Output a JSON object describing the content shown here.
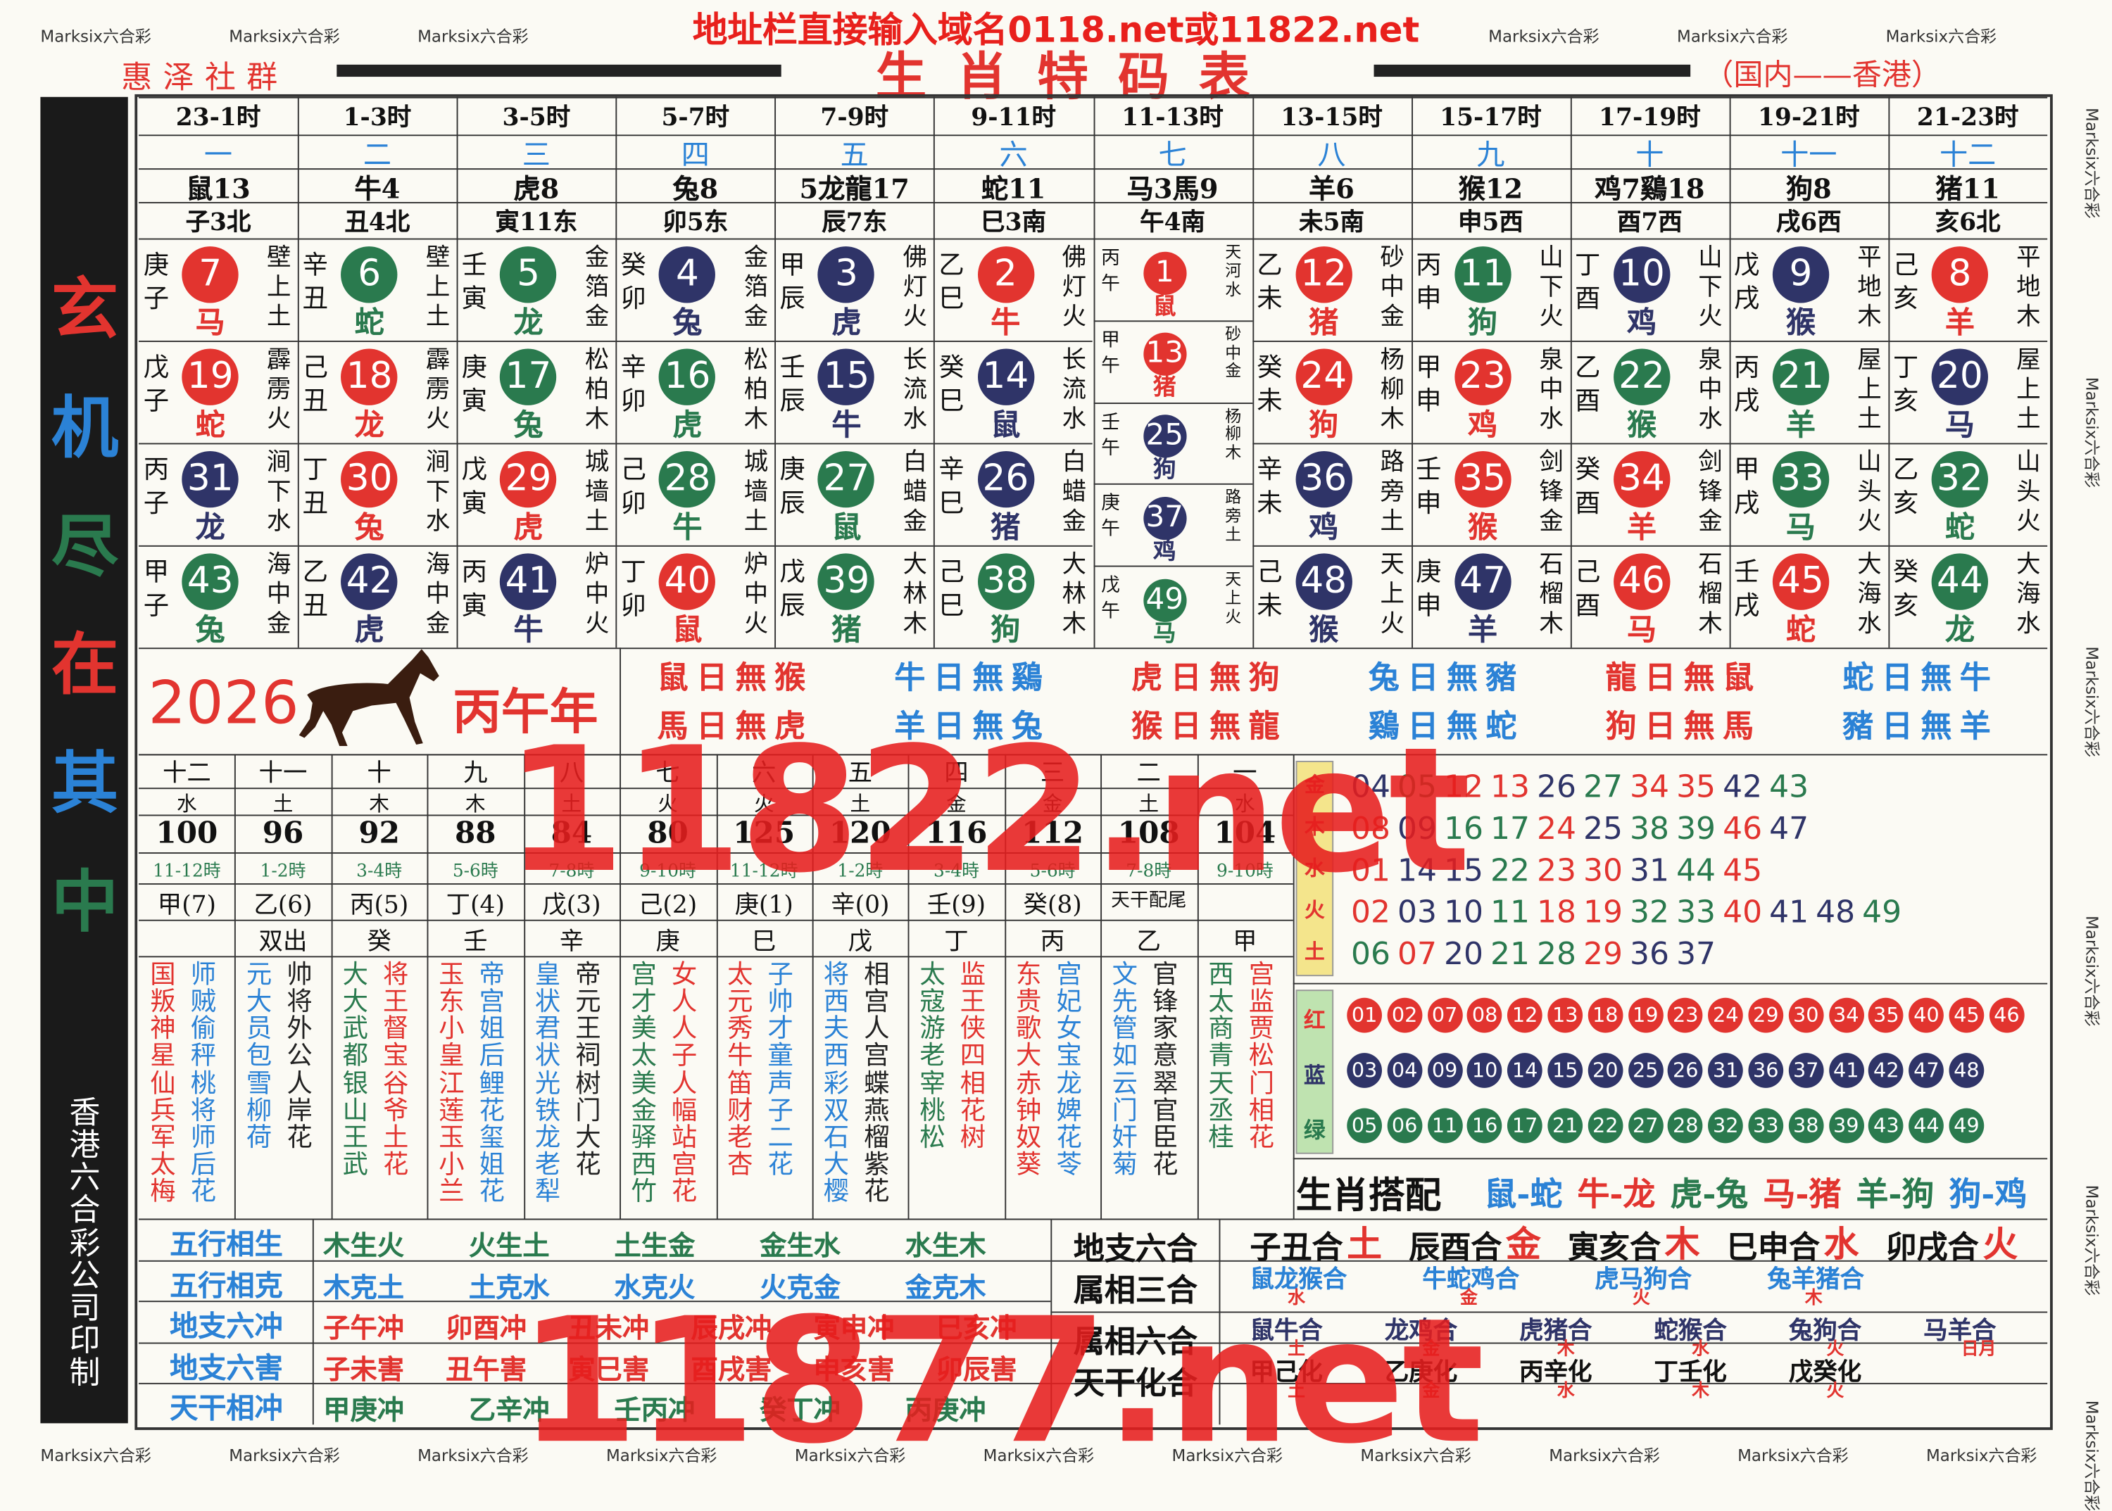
{
  "header": {
    "notice": "地址栏直接输入域名0118.net或11822.net",
    "group": "惠泽社群",
    "title": "生肖特码表",
    "region": "（国内——香港）"
  },
  "watermark": "Marksix六合彩",
  "side": {
    "slogan": "玄机尽在其中",
    "printer": "香港六合彩公司印制"
  },
  "columns": [
    {
      "hours": "23-1时",
      "number": "一",
      "zodiac": "鼠13",
      "branch": "子3北",
      "cells": [
        {
          "ganzhi": "庚子",
          "num": 7,
          "animal": "马",
          "nayin": "壁上土"
        },
        {
          "ganzhi": "戊子",
          "num": 19,
          "animal": "蛇",
          "nayin": "霹雳火"
        },
        {
          "ganzhi": "丙子",
          "num": 31,
          "animal": "龙",
          "nayin": "涧下水"
        },
        {
          "ganzhi": "甲子",
          "num": 43,
          "animal": "兔",
          "nayin": "海中金"
        }
      ]
    },
    {
      "hours": "1-3时",
      "number": "二",
      "zodiac": "牛4",
      "branch": "丑4北",
      "cells": [
        {
          "ganzhi": "辛丑",
          "num": 6,
          "animal": "蛇",
          "nayin": "壁上土"
        },
        {
          "ganzhi": "己丑",
          "num": 18,
          "animal": "龙",
          "nayin": "霹雳火"
        },
        {
          "ganzhi": "丁丑",
          "num": 30,
          "animal": "兔",
          "nayin": "涧下水"
        },
        {
          "ganzhi": "乙丑",
          "num": 42,
          "animal": "虎",
          "nayin": "海中金"
        }
      ]
    },
    {
      "hours": "3-5时",
      "number": "三",
      "zodiac": "虎8",
      "branch": "寅11东",
      "cells": [
        {
          "ganzhi": "壬寅",
          "num": 5,
          "animal": "龙",
          "nayin": "金箔金"
        },
        {
          "ganzhi": "庚寅",
          "num": 17,
          "animal": "兔",
          "nayin": "松柏木"
        },
        {
          "ganzhi": "戊寅",
          "num": 29,
          "animal": "虎",
          "nayin": "城墙土"
        },
        {
          "ganzhi": "丙寅",
          "num": 41,
          "animal": "牛",
          "nayin": "炉中火"
        }
      ]
    },
    {
      "hours": "5-7时",
      "number": "四",
      "zodiac": "兔8",
      "branch": "卯5东",
      "cells": [
        {
          "ganzhi": "癸卯",
          "num": 4,
          "animal": "兔",
          "nayin": "金箔金"
        },
        {
          "ganzhi": "辛卯",
          "num": 16,
          "animal": "虎",
          "nayin": "松柏木"
        },
        {
          "ganzhi": "己卯",
          "num": 28,
          "animal": "牛",
          "nayin": "城墙土"
        },
        {
          "ganzhi": "丁卯",
          "num": 40,
          "animal": "鼠",
          "nayin": "炉中火"
        }
      ]
    },
    {
      "hours": "7-9时",
      "number": "五",
      "zodiac": "5龙龍17",
      "branch": "辰7东",
      "cells": [
        {
          "ganzhi": "甲辰",
          "num": 3,
          "animal": "虎",
          "nayin": "佛灯火"
        },
        {
          "ganzhi": "壬辰",
          "num": 15,
          "animal": "牛",
          "nayin": "长流水"
        },
        {
          "ganzhi": "庚辰",
          "num": 27,
          "animal": "鼠",
          "nayin": "白蜡金"
        },
        {
          "ganzhi": "戊辰",
          "num": 39,
          "animal": "猪",
          "nayin": "大林木"
        }
      ]
    },
    {
      "hours": "9-11时",
      "number": "六",
      "zodiac": "蛇11",
      "branch": "巳3南",
      "cells": [
        {
          "ganzhi": "乙巳",
          "num": 2,
          "animal": "牛",
          "nayin": "佛灯火"
        },
        {
          "ganzhi": "癸巳",
          "num": 14,
          "animal": "鼠",
          "nayin": "长流水"
        },
        {
          "ganzhi": "辛巳",
          "num": 26,
          "animal": "猪",
          "nayin": "白蜡金"
        },
        {
          "ganzhi": "己巳",
          "num": 38,
          "animal": "狗",
          "nayin": "大林木"
        }
      ]
    },
    {
      "hours": "11-13时",
      "number": "七",
      "zodiac": "马3馬9",
      "branch": "午4南",
      "cells": [
        {
          "ganzhi": "丙午",
          "num": 1,
          "animal": "鼠",
          "nayin": "天河水"
        },
        {
          "ganzhi": "甲午",
          "num": 13,
          "animal": "猪",
          "nayin": "砂中金"
        },
        {
          "ganzhi": "壬午",
          "num": 25,
          "animal": "狗",
          "nayin": "杨柳木"
        },
        {
          "ganzhi": "庚午",
          "num": 37,
          "animal": "鸡",
          "nayin": "路旁土"
        },
        {
          "ganzhi": "戊午",
          "num": 49,
          "animal": "马",
          "nayin": "天上火"
        }
      ]
    },
    {
      "hours": "13-15时",
      "number": "八",
      "zodiac": "羊6",
      "branch": "未5南",
      "cells": [
        {
          "ganzhi": "乙未",
          "num": 12,
          "animal": "猪",
          "nayin": "砂中金"
        },
        {
          "ganzhi": "癸未",
          "num": 24,
          "animal": "狗",
          "nayin": "杨柳木"
        },
        {
          "ganzhi": "辛未",
          "num": 36,
          "animal": "鸡",
          "nayin": "路旁土"
        },
        {
          "ganzhi": "己未",
          "num": 48,
          "animal": "猴",
          "nayin": "天上火"
        }
      ]
    },
    {
      "hours": "15-17时",
      "number": "九",
      "zodiac": "猴12",
      "branch": "申5西",
      "cells": [
        {
          "ganzhi": "丙申",
          "num": 11,
          "animal": "狗",
          "nayin": "山下火"
        },
        {
          "ganzhi": "甲申",
          "num": 23,
          "animal": "鸡",
          "nayin": "泉中水"
        },
        {
          "ganzhi": "壬申",
          "num": 35,
          "animal": "猴",
          "nayin": "剑锋金"
        },
        {
          "ganzhi": "庚申",
          "num": 47,
          "animal": "羊",
          "nayin": "石榴木"
        }
      ]
    },
    {
      "hours": "17-19时",
      "number": "十",
      "zodiac": "鸡7鷄18",
      "branch": "酉7西",
      "cells": [
        {
          "ganzhi": "丁酉",
          "num": 10,
          "animal": "鸡",
          "nayin": "山下火"
        },
        {
          "ganzhi": "乙酉",
          "num": 22,
          "animal": "猴",
          "nayin": "泉中水"
        },
        {
          "ganzhi": "癸酉",
          "num": 34,
          "animal": "羊",
          "nayin": "剑锋金"
        },
        {
          "ganzhi": "己酉",
          "num": 46,
          "animal": "马",
          "nayin": "石榴木"
        }
      ]
    },
    {
      "hours": "19-21时",
      "number": "十一",
      "zodiac": "狗8",
      "branch": "戌6西",
      "cells": [
        {
          "ganzhi": "戊戌",
          "num": 9,
          "animal": "猴",
          "nayin": "平地木"
        },
        {
          "ganzhi": "丙戌",
          "num": 21,
          "animal": "羊",
          "nayin": "屋上土"
        },
        {
          "ganzhi": "甲戌",
          "num": 33,
          "animal": "马",
          "nayin": "山头火"
        },
        {
          "ganzhi": "壬戌",
          "num": 45,
          "animal": "蛇",
          "nayin": "大海水"
        }
      ]
    },
    {
      "hours": "21-23时",
      "number": "十二",
      "zodiac": "猪11",
      "branch": "亥6北",
      "cells": [
        {
          "ganzhi": "己亥",
          "num": 8,
          "animal": "羊",
          "nayin": "平地木"
        },
        {
          "ganzhi": "丁亥",
          "num": 20,
          "animal": "马",
          "nayin": "屋上土"
        },
        {
          "ganzhi": "乙亥",
          "num": 32,
          "animal": "蛇",
          "nayin": "山头火"
        },
        {
          "ganzhi": "癸亥",
          "num": 44,
          "animal": "龙",
          "nayin": "大海水"
        }
      ]
    }
  ],
  "banner": {
    "year": "2026",
    "name": "丙午年",
    "avoid": [
      "鼠日無猴",
      "牛日無鷄",
      "虎日無狗",
      "兔日無豬",
      "龍日無鼠",
      "蛇日無牛",
      "馬日無虎",
      "羊日無兔",
      "猴日無龍",
      "鷄日無蛇",
      "狗日無馬",
      "豬日無羊"
    ]
  },
  "table": {
    "numbers": [
      "十二",
      "十一",
      "十",
      "九",
      "八",
      "七",
      "六",
      "五",
      "四",
      "三",
      "二",
      "一"
    ],
    "elements": [
      "水",
      "土",
      "木",
      "木",
      "土",
      "火",
      "火",
      "土",
      "金",
      "金",
      "土",
      "水"
    ],
    "strokes": [
      100,
      96,
      92,
      88,
      84,
      80,
      125,
      120,
      116,
      112,
      108,
      104
    ],
    "times": [
      "11-12時",
      "1-2時",
      "3-4時",
      "5-6時",
      "7-8時",
      "9-10時",
      "11-12時",
      "1-2時",
      "3-4時",
      "5-6時",
      "7-8時",
      "9-10時"
    ],
    "stems": [
      "甲(7)",
      "乙(6)",
      "丙(5)",
      "丁(4)",
      "戊(3)",
      "己(2)",
      "庚(1)",
      "辛(0)",
      "壬(9)",
      "癸(8)",
      "天干配尾"
    ],
    "pairs": [
      "双出",
      "癸",
      "壬",
      "辛",
      "庚",
      "巳",
      "戊",
      "丁",
      "丙",
      "乙",
      "甲"
    ],
    "poems": [
      [
        "国叛神星仙兵军太梅",
        "师贼偷秤桃将师后花"
      ],
      [
        "元大员包雪柳荷",
        "帅将外公人岸花"
      ],
      [
        "大大武都银山王武",
        "将王督宝谷爷土花"
      ],
      [
        "玉东小皇江莲玉小兰",
        "帝宫姐后鲤花玺姐花"
      ],
      [
        "皇状君状光铁龙老犁",
        "帝元王祠树门大花"
      ],
      [
        "宫才美太美金驿西竹",
        "女人人子人幅站宫花"
      ],
      [
        "太元秀牛笛财老杏",
        "子帅才童声子二花"
      ],
      [
        "将西夫西彩双石大樱",
        "相宫人宫蝶燕榴紫花"
      ],
      [
        "太寇游老宰桃松",
        "监王侠四相花树"
      ],
      [
        "东贵歌大赤钟奴葵",
        "宫妃女宝龙婢花苓"
      ],
      [
        "文先管如云门奸菊",
        "官锋家意翠官臣花"
      ],
      [
        "西太商青天丞桂",
        "宫监贾松门相花"
      ]
    ]
  },
  "five_elements": {
    "labels": [
      "金",
      "木",
      "水",
      "火",
      "土"
    ],
    "rows": [
      [
        "04",
        "05",
        "12",
        "13",
        "26",
        "27",
        "34",
        "35",
        "42",
        "43"
      ],
      [
        "08",
        "09",
        "16",
        "17",
        "24",
        "25",
        "38",
        "39",
        "46",
        "47"
      ],
      [
        "01",
        "14",
        "15",
        "22",
        "23",
        "30",
        "31",
        "44",
        "45"
      ],
      [
        "02",
        "03",
        "10",
        "11",
        "18",
        "19",
        "32",
        "33",
        "40",
        "41",
        "48",
        "49"
      ],
      [
        "06",
        "07",
        "20",
        "21",
        "28",
        "29",
        "36",
        "37"
      ]
    ]
  },
  "waves": {
    "labels": [
      "红",
      "蓝",
      "绿"
    ],
    "rows": [
      [
        "01",
        "02",
        "07",
        "08",
        "12",
        "13",
        "18",
        "19",
        "23",
        "24",
        "29",
        "30",
        "34",
        "35",
        "40",
        "45",
        "46"
      ],
      [
        "03",
        "04",
        "09",
        "10",
        "14",
        "15",
        "20",
        "25",
        "26",
        "31",
        "36",
        "37",
        "41",
        "42",
        "47",
        "48"
      ],
      [
        "05",
        "06",
        "11",
        "16",
        "17",
        "21",
        "22",
        "27",
        "28",
        "32",
        "33",
        "38",
        "39",
        "43",
        "44",
        "49"
      ]
    ]
  },
  "match": {
    "label": "生肖搭配",
    "pairs": [
      "鼠-蛇",
      "牛-龙",
      "虎-兔",
      "马-猪",
      "羊-狗",
      "狗-鸡"
    ]
  },
  "relations_left": [
    {
      "label": "五行相生",
      "items": [
        "木生火",
        "火生土",
        "土生金",
        "金生水",
        "水生木"
      ]
    },
    {
      "label": "五行相克",
      "items": [
        "木克土",
        "土克水",
        "水克火",
        "火克金",
        "金克木"
      ]
    },
    {
      "label": "地支六冲",
      "items": [
        "子午冲",
        "卯酉冲",
        "丑未冲",
        "辰戌冲",
        "寅申冲",
        "巳亥冲"
      ]
    },
    {
      "label": "地支六害",
      "items": [
        "子未害",
        "丑午害",
        "寅巳害",
        "酉戌害",
        "申亥害",
        "卯辰害"
      ]
    },
    {
      "label": "天干相冲",
      "items": [
        "甲庚冲",
        "乙辛冲",
        "壬丙冲",
        "癸丁冲",
        "丙庚冲"
      ]
    }
  ],
  "relations_right": [
    {
      "label": "地支六合",
      "items": [
        {
          "text": "子丑合",
          "el": "土"
        },
        {
          "text": "辰酉合",
          "el": "金"
        },
        {
          "text": "寅亥合",
          "el": "木"
        },
        {
          "text": "巳申合",
          "el": "水"
        },
        {
          "text": "卯戌合",
          "el": "火"
        }
      ]
    },
    {
      "label": "属相三合",
      "items": [
        {
          "text": "鼠龙猴合",
          "el": "水"
        },
        {
          "text": "牛蛇鸡合",
          "el": "金"
        },
        {
          "text": "虎马狗合",
          "el": "火"
        },
        {
          "text": "兔羊猪合",
          "el": "木"
        }
      ]
    },
    {
      "label": "属相六合",
      "items": [
        {
          "text": "鼠牛合",
          "el": "土"
        },
        {
          "text": "龙鸡合",
          "el": "金"
        },
        {
          "text": "虎猪合",
          "el": "木"
        },
        {
          "text": "蛇猴合",
          "el": "水"
        },
        {
          "text": "兔狗合",
          "el": "火"
        },
        {
          "text": "马羊合",
          "el": "日月"
        }
      ]
    },
    {
      "label": "天干化合",
      "items": [
        {
          "text": "甲己化",
          "el": "土"
        },
        {
          "text": "乙庚化",
          "el": "金"
        },
        {
          "text": "丙辛化",
          "el": "水"
        },
        {
          "text": "丁壬化",
          "el": "木"
        },
        {
          "text": "戊癸化",
          "el": "火"
        }
      ]
    }
  ],
  "marks": [
    "11822.net",
    "11877.net"
  ]
}
